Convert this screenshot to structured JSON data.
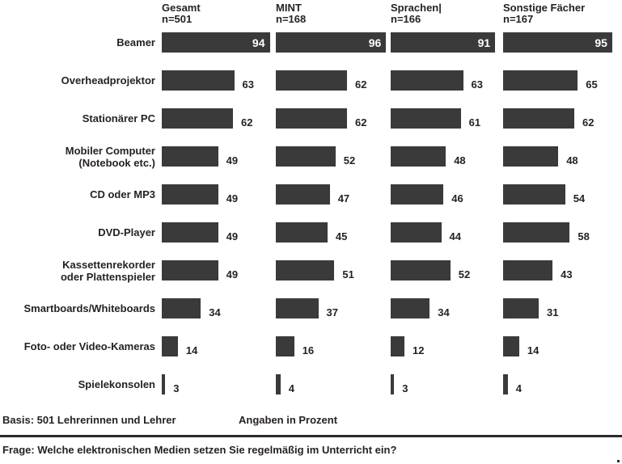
{
  "chart_data": {
    "type": "bar",
    "orientation": "horizontal",
    "unit": "percent",
    "xlim": [
      0,
      100
    ],
    "grid": false,
    "legend_position": "column-headers-top",
    "value_labels": "outside-right (first row inside bar, white)",
    "categories": [
      "Beamer",
      "Overheadprojektor",
      "Stationärer PC",
      "Mobiler Computer\n(Notebook etc.)",
      "CD oder MP3",
      "DVD-Player",
      "Kassettenrekorder\noder Plattenspieler",
      "Smartboards/Whiteboards",
      "Foto- oder Video-Kameras",
      "Spielekonsolen"
    ],
    "series": [
      {
        "name": "Gesamt",
        "n": "n=501",
        "values": [
          94,
          63,
          62,
          49,
          49,
          49,
          49,
          34,
          14,
          3
        ]
      },
      {
        "name": "MINT",
        "n": "n=168",
        "values": [
          96,
          62,
          62,
          52,
          47,
          45,
          51,
          37,
          16,
          4
        ]
      },
      {
        "name": "Sprachen|",
        "n": "n=166",
        "values": [
          91,
          63,
          61,
          48,
          46,
          44,
          52,
          34,
          12,
          3
        ]
      },
      {
        "name": "Sonstige Fächer",
        "n": "n=167",
        "values": [
          95,
          65,
          62,
          48,
          54,
          58,
          43,
          31,
          14,
          4
        ]
      }
    ]
  },
  "footer": {
    "basis": "Basis: 501 Lehrerinnen und Lehrer",
    "unit_note": "Angaben in Prozent",
    "question": "Frage: Welche elektronischen Medien setzen Sie regelmäßig im Unterricht ein?"
  },
  "colors": {
    "bar": "#3a3a3a",
    "text": "#262223",
    "value_inside": "#ffffff",
    "rule": "#2e2a2b"
  }
}
